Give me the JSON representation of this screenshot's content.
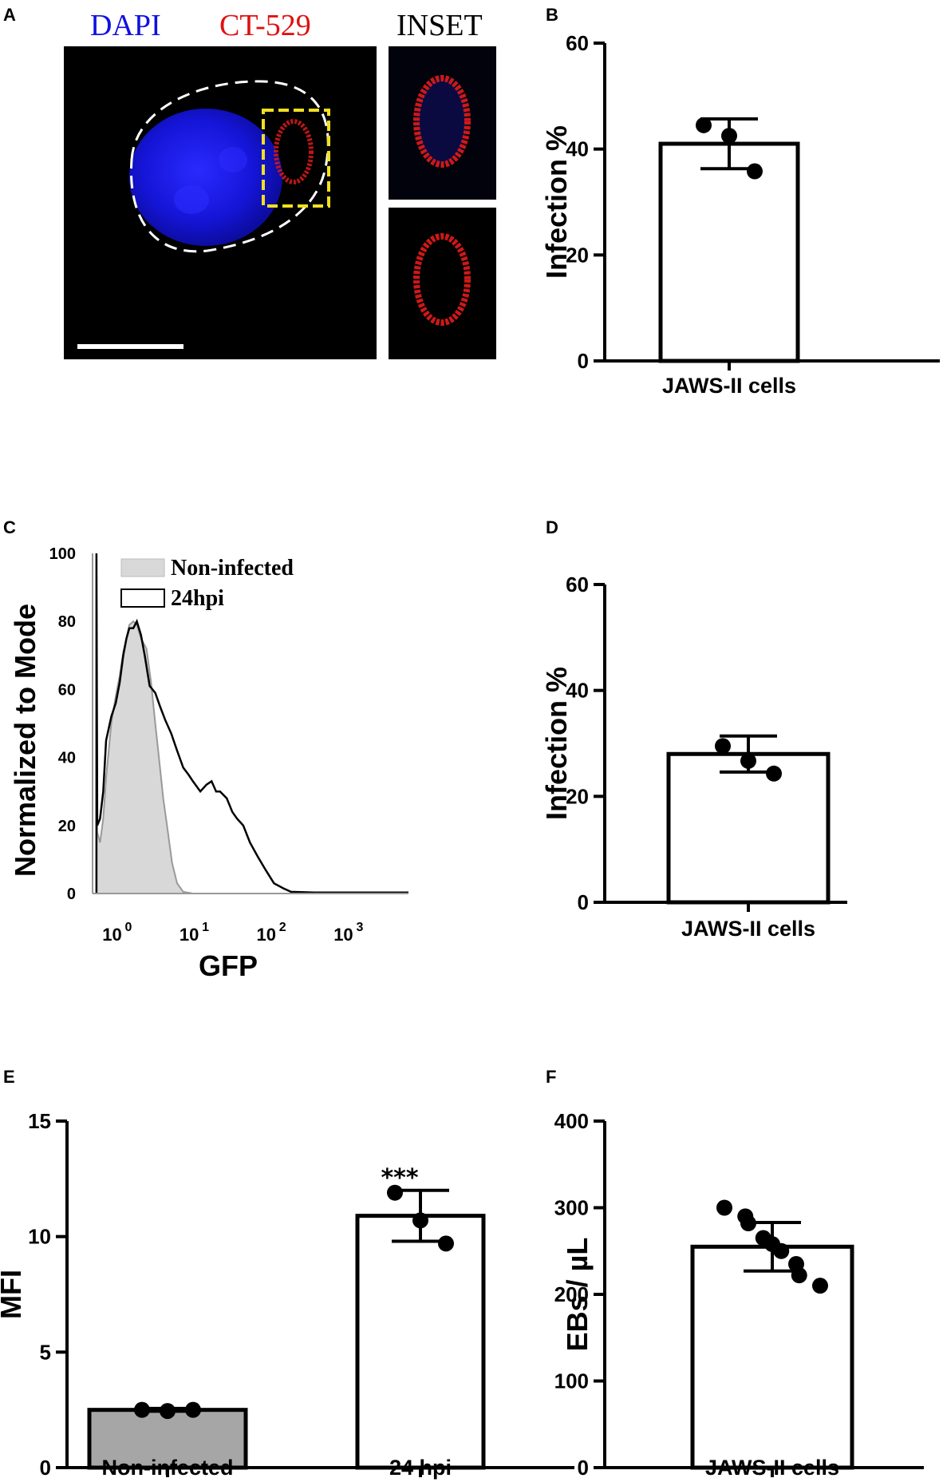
{
  "panel_letters": {
    "a": "A",
    "b": "B",
    "c": "C",
    "d": "D",
    "e": "E",
    "f": "F"
  },
  "micrograph": {
    "channel_labels": {
      "dapi": "DAPI",
      "ct529": "CT-529",
      "inset": "INSET"
    },
    "colors": {
      "dapi": "#1010e0",
      "ct529": "#e01010",
      "inset": "#000000",
      "box": "#f0e020",
      "outline": "#ffffff"
    }
  },
  "chart_data": [
    {
      "id": "B",
      "type": "bar",
      "categories": [
        "JAWS-II cells"
      ],
      "values": [
        41
      ],
      "error": [
        4.7
      ],
      "points": [
        [
          44.5,
          42.5,
          35.8
        ]
      ],
      "ylabel": "Infection %",
      "ylim": [
        0,
        60
      ],
      "yticks": [
        0,
        20,
        40,
        60
      ]
    },
    {
      "id": "C",
      "type": "line",
      "xlabel": "GFP",
      "ylabel": "Normalized to Mode",
      "xscale": "log",
      "xlim": [
        0.4,
        5000
      ],
      "ylim": [
        0,
        100
      ],
      "yticks": [
        0,
        20,
        40,
        60,
        80,
        100
      ],
      "xtick_base": "10",
      "xtick_exponents": [
        "0",
        "1",
        "2",
        "3"
      ],
      "xticks": [
        1,
        10,
        100,
        1000
      ],
      "legend": [
        "Non-infected",
        "24hpi"
      ],
      "legend_position": "top",
      "series": [
        {
          "name": "Non-infected",
          "filled": true,
          "color": "#d8d8d8",
          "x": [
            0.45,
            0.45,
            0.46,
            0.5,
            0.55,
            0.6,
            0.7,
            0.8,
            0.9,
            1.0,
            1.1,
            1.2,
            1.35,
            1.5,
            1.7,
            2.0,
            2.3,
            2.6,
            2.9,
            3.3,
            3.8,
            4.3,
            5.0,
            6.0,
            8.0,
            15,
            100,
            1000,
            5000
          ],
          "y": [
            0,
            100,
            18,
            15,
            22,
            34,
            50,
            58,
            64,
            71,
            75,
            79,
            80,
            79,
            75,
            72,
            62,
            50,
            40,
            28,
            18,
            9,
            3,
            0.5,
            0,
            0,
            0,
            0,
            0
          ]
        },
        {
          "name": "24hpi",
          "filled": false,
          "color": "#000000",
          "x": [
            0.45,
            0.45,
            0.46,
            0.5,
            0.55,
            0.6,
            0.7,
            0.8,
            0.9,
            1.0,
            1.1,
            1.2,
            1.35,
            1.5,
            1.7,
            1.9,
            2.2,
            2.6,
            3.0,
            3.5,
            4.2,
            5.0,
            6.0,
            7.0,
            8.0,
            10,
            12,
            14,
            16,
            18,
            22,
            26,
            30,
            36,
            44,
            55,
            70,
            90,
            120,
            150,
            300,
            1000,
            5000
          ],
          "y": [
            0,
            100,
            20,
            22,
            30,
            45,
            52,
            56,
            62,
            70,
            75,
            78,
            78,
            80,
            76,
            70,
            61,
            59,
            55,
            51,
            47,
            42,
            37,
            35,
            33,
            30,
            32,
            33,
            30,
            30,
            28,
            24,
            22,
            20,
            15,
            11,
            7,
            3,
            1.5,
            0.5,
            0.3,
            0.3,
            0.3
          ]
        }
      ]
    },
    {
      "id": "D",
      "type": "bar",
      "categories": [
        "JAWS-II cells"
      ],
      "values": [
        28
      ],
      "error": [
        3.4
      ],
      "points": [
        [
          29.5,
          26.7,
          24.3
        ]
      ],
      "ylabel": "Infection %",
      "ylim": [
        0,
        60
      ],
      "yticks": [
        0,
        20,
        40,
        60
      ]
    },
    {
      "id": "E",
      "type": "bar",
      "categories": [
        "Non-infected",
        "24 hpi"
      ],
      "values": [
        2.5,
        10.9
      ],
      "error": [
        0.06,
        1.1
      ],
      "points": [
        [
          2.5,
          2.45,
          2.5
        ],
        [
          11.9,
          10.7,
          9.7
        ]
      ],
      "ylabel": "MFI",
      "ylim": [
        0,
        15
      ],
      "yticks": [
        0,
        5,
        10,
        15
      ],
      "significance": [
        "",
        "***"
      ],
      "bar_colors": [
        "#a6a6a6",
        "#ffffff"
      ]
    },
    {
      "id": "F",
      "type": "bar",
      "categories": [
        "JAWS-II cells"
      ],
      "values": [
        255
      ],
      "error": [
        28
      ],
      "points": [
        [
          300,
          290,
          282,
          265,
          258,
          250,
          235,
          222,
          210
        ]
      ],
      "ylabel": "EBs / µL",
      "ylim": [
        0,
        400
      ],
      "yticks": [
        0,
        100,
        200,
        300,
        400
      ]
    }
  ]
}
